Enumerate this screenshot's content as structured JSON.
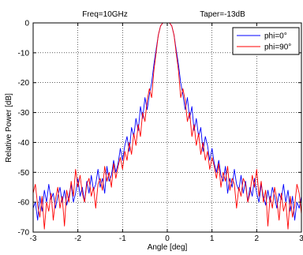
{
  "chart_data": {
    "type": "line",
    "title_left": "Freq=10GHz",
    "title_right": "Taper=-13dB",
    "xlabel": "Angle [deg]",
    "ylabel": "Relative Power [dB]",
    "xlim": [
      -3,
      3
    ],
    "ylim": [
      -70,
      0
    ],
    "xticks": [
      "-3",
      "-2",
      "-1",
      "0",
      "1",
      "2",
      "3"
    ],
    "yticks": [
      "0",
      "-10",
      "-20",
      "-30",
      "-40",
      "-50",
      "-60",
      "-70"
    ],
    "grid": true,
    "grid_style": "dotted",
    "legend_position": "top-right",
    "series": [
      {
        "name": "phi=0°",
        "color": "#0000ff",
        "x": [
          -3.0,
          -2.95,
          -2.9,
          -2.85,
          -2.8,
          -2.75,
          -2.7,
          -2.65,
          -2.6,
          -2.55,
          -2.5,
          -2.45,
          -2.4,
          -2.35,
          -2.3,
          -2.25,
          -2.2,
          -2.15,
          -2.1,
          -2.05,
          -2.0,
          -1.95,
          -1.9,
          -1.85,
          -1.8,
          -1.75,
          -1.7,
          -1.65,
          -1.6,
          -1.55,
          -1.5,
          -1.45,
          -1.4,
          -1.35,
          -1.3,
          -1.25,
          -1.2,
          -1.15,
          -1.1,
          -1.05,
          -1.0,
          -0.95,
          -0.9,
          -0.85,
          -0.8,
          -0.75,
          -0.7,
          -0.65,
          -0.6,
          -0.55,
          -0.5,
          -0.45,
          -0.4,
          -0.35,
          -0.3,
          -0.25,
          -0.2,
          -0.15,
          -0.1,
          -0.05,
          0.0,
          0.05,
          0.1,
          0.15,
          0.2,
          0.25,
          0.3,
          0.35,
          0.4,
          0.45,
          0.5,
          0.55,
          0.6,
          0.65,
          0.7,
          0.75,
          0.8,
          0.85,
          0.9,
          0.95,
          1.0,
          1.05,
          1.1,
          1.15,
          1.2,
          1.25,
          1.3,
          1.35,
          1.4,
          1.45,
          1.5,
          1.55,
          1.6,
          1.65,
          1.7,
          1.75,
          1.8,
          1.85,
          1.9,
          1.95,
          2.0,
          2.05,
          2.1,
          2.15,
          2.2,
          2.25,
          2.3,
          2.35,
          2.4,
          2.45,
          2.5,
          2.55,
          2.6,
          2.65,
          2.7,
          2.75,
          2.8,
          2.85,
          2.9,
          2.95,
          3.0
        ],
        "y": [
          -62,
          -60,
          -66,
          -58,
          -63,
          -56,
          -60,
          -54,
          -59,
          -57,
          -62,
          -58,
          -55,
          -60,
          -56,
          -61,
          -58,
          -54,
          -60,
          -57,
          -52,
          -58,
          -55,
          -60,
          -53,
          -57,
          -51,
          -56,
          -54,
          -49,
          -55,
          -52,
          -57,
          -48,
          -53,
          -51,
          -46,
          -50,
          -47,
          -42,
          -46,
          -41,
          -38,
          -43,
          -35,
          -38,
          -32,
          -36,
          -28,
          -32,
          -25,
          -29,
          -24,
          -20,
          -14,
          -9,
          -4,
          -1,
          0,
          0,
          0,
          0,
          -1,
          -4,
          -9,
          -14,
          -20,
          -24,
          -29,
          -25,
          -32,
          -28,
          -36,
          -32,
          -38,
          -35,
          -43,
          -38,
          -41,
          -46,
          -42,
          -47,
          -50,
          -46,
          -51,
          -53,
          -48,
          -57,
          -52,
          -55,
          -49,
          -54,
          -56,
          -51,
          -57,
          -53,
          -60,
          -55,
          -58,
          -52,
          -57,
          -60,
          -54,
          -58,
          -61,
          -56,
          -60,
          -55,
          -58,
          -62,
          -57,
          -59,
          -54,
          -60,
          -56,
          -63,
          -58,
          -66,
          -60,
          -62,
          -58
        ]
      },
      {
        "name": "phi=90°",
        "color": "#ff0000",
        "x": [
          -3.0,
          -2.95,
          -2.9,
          -2.85,
          -2.8,
          -2.75,
          -2.7,
          -2.65,
          -2.6,
          -2.55,
          -2.5,
          -2.45,
          -2.4,
          -2.35,
          -2.3,
          -2.25,
          -2.2,
          -2.15,
          -2.1,
          -2.05,
          -2.0,
          -1.95,
          -1.9,
          -1.85,
          -1.8,
          -1.75,
          -1.7,
          -1.65,
          -1.6,
          -1.55,
          -1.5,
          -1.45,
          -1.4,
          -1.35,
          -1.3,
          -1.25,
          -1.2,
          -1.15,
          -1.1,
          -1.05,
          -1.0,
          -0.95,
          -0.9,
          -0.85,
          -0.8,
          -0.75,
          -0.7,
          -0.65,
          -0.6,
          -0.55,
          -0.5,
          -0.45,
          -0.4,
          -0.35,
          -0.3,
          -0.25,
          -0.2,
          -0.15,
          -0.1,
          -0.05,
          0.0,
          0.05,
          0.1,
          0.15,
          0.2,
          0.25,
          0.3,
          0.35,
          0.4,
          0.45,
          0.5,
          0.55,
          0.6,
          0.65,
          0.7,
          0.75,
          0.8,
          0.85,
          0.9,
          0.95,
          1.0,
          1.05,
          1.1,
          1.15,
          1.2,
          1.25,
          1.3,
          1.35,
          1.4,
          1.45,
          1.5,
          1.55,
          1.6,
          1.65,
          1.7,
          1.75,
          1.8,
          1.85,
          1.9,
          1.95,
          2.0,
          2.05,
          2.1,
          2.15,
          2.2,
          2.25,
          2.3,
          2.35,
          2.4,
          2.45,
          2.5,
          2.55,
          2.6,
          2.65,
          2.7,
          2.75,
          2.8,
          2.85,
          2.9,
          2.95,
          3.0
        ],
        "y": [
          -57,
          -54,
          -61,
          -65,
          -58,
          -69,
          -60,
          -63,
          -57,
          -66,
          -59,
          -55,
          -62,
          -58,
          -68,
          -56,
          -60,
          -53,
          -58,
          -49,
          -55,
          -51,
          -57,
          -60,
          -54,
          -52,
          -58,
          -55,
          -62,
          -54,
          -52,
          -56,
          -48,
          -53,
          -50,
          -55,
          -47,
          -52,
          -48,
          -45,
          -49,
          -43,
          -46,
          -40,
          -44,
          -37,
          -41,
          -34,
          -38,
          -30,
          -33,
          -26,
          -22,
          -25,
          -16,
          -10,
          -4,
          -1,
          0,
          0,
          0,
          0,
          -1,
          -4,
          -10,
          -16,
          -25,
          -22,
          -26,
          -33,
          -30,
          -38,
          -34,
          -41,
          -37,
          -44,
          -40,
          -46,
          -43,
          -49,
          -45,
          -48,
          -52,
          -47,
          -55,
          -50,
          -53,
          -48,
          -56,
          -52,
          -54,
          -62,
          -55,
          -58,
          -52,
          -54,
          -60,
          -57,
          -51,
          -55,
          -49,
          -58,
          -53,
          -60,
          -56,
          -68,
          -58,
          -62,
          -55,
          -59,
          -66,
          -57,
          -63,
          -60,
          -69,
          -58,
          -65,
          -61,
          -54,
          -57,
          -64
        ]
      }
    ]
  }
}
